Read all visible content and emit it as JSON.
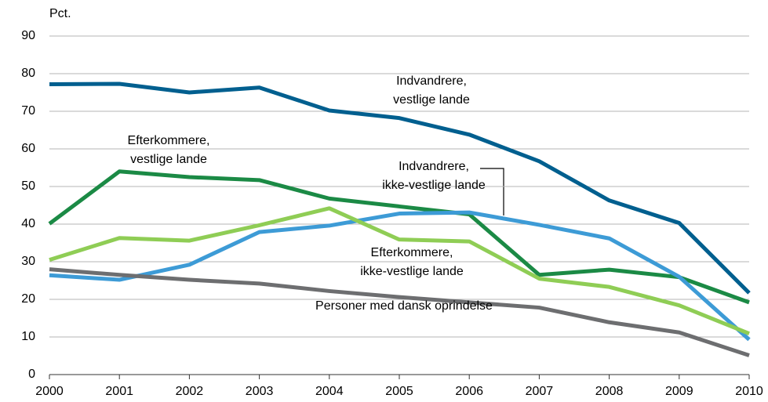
{
  "chart_data": {
    "type": "line",
    "y_label": "Pct.",
    "x": [
      2000,
      2001,
      2002,
      2003,
      2004,
      2005,
      2006,
      2007,
      2008,
      2009,
      2010
    ],
    "xlim": [
      2000,
      2010
    ],
    "xticks": [
      2000,
      2001,
      2002,
      2003,
      2004,
      2005,
      2006,
      2007,
      2008,
      2009,
      2010
    ],
    "ylim": [
      0,
      90
    ],
    "yticks": [
      0,
      10,
      20,
      30,
      40,
      50,
      60,
      70,
      80,
      90
    ],
    "grid": true,
    "series": [
      {
        "name": [
          "Indvandrere,",
          "vestlige lande"
        ],
        "color": "#005f8f",
        "values": [
          77.2,
          77.3,
          75.0,
          76.3,
          70.2,
          68.2,
          63.8,
          56.7,
          46.3,
          40.3,
          21.7
        ]
      },
      {
        "name": [
          "Efterkommere,",
          "vestlige lande"
        ],
        "color": "#1b8a45",
        "values": [
          40.1,
          54.0,
          52.5,
          51.7,
          46.8,
          44.7,
          42.6,
          26.5,
          27.9,
          25.9,
          19.2
        ]
      },
      {
        "name": [
          "Indvandrere,",
          "ikke-vestlige lande"
        ],
        "color": "#3d9bd6",
        "values": [
          26.4,
          25.2,
          29.2,
          37.9,
          39.6,
          42.8,
          43.1,
          39.8,
          36.2,
          26.0,
          9.3
        ]
      },
      {
        "name": [
          "Efterkommere,",
          "ikke-vestlige lande"
        ],
        "color": "#8fcd55",
        "values": [
          30.5,
          36.3,
          35.6,
          39.7,
          44.2,
          35.9,
          35.4,
          25.5,
          23.3,
          18.4,
          10.9
        ]
      },
      {
        "name": [
          "Personer med dansk oprindelse"
        ],
        "color": "#6d6e70",
        "values": [
          28.0,
          26.5,
          25.2,
          24.2,
          22.2,
          20.6,
          19.2,
          17.8,
          13.9,
          11.2,
          5.1
        ]
      }
    ]
  }
}
